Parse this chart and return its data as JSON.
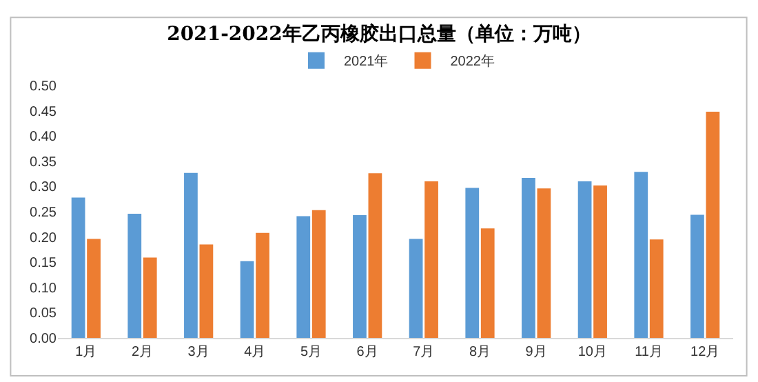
{
  "chart_data": {
    "type": "bar",
    "title": "2021-2022年乙丙橡胶出口总量（单位：万吨）",
    "categories": [
      "1月",
      "2月",
      "3月",
      "4月",
      "5月",
      "6月",
      "7月",
      "8月",
      "9月",
      "10月",
      "11月",
      "12月"
    ],
    "series": [
      {
        "name": "2021年",
        "color": "#5b9bd5",
        "values": [
          0.278,
          0.246,
          0.327,
          0.152,
          0.241,
          0.243,
          0.196,
          0.297,
          0.317,
          0.31,
          0.329,
          0.244
        ]
      },
      {
        "name": "2022年",
        "color": "#ed7d31",
        "values": [
          0.196,
          0.159,
          0.185,
          0.208,
          0.253,
          0.326,
          0.31,
          0.217,
          0.296,
          0.302,
          0.195,
          0.448
        ]
      }
    ],
    "ylim": [
      0,
      0.5
    ],
    "yticks": [
      {
        "value": 0,
        "label": "0.00"
      },
      {
        "value": 0.05,
        "label": "0.05"
      },
      {
        "value": 0.1,
        "label": "0.10"
      },
      {
        "value": 0.15,
        "label": "0.15"
      },
      {
        "value": 0.2,
        "label": "0.20"
      },
      {
        "value": 0.25,
        "label": "0.25"
      },
      {
        "value": 0.3,
        "label": "0.30"
      },
      {
        "value": 0.35,
        "label": "0.35"
      },
      {
        "value": 0.4,
        "label": "0.40"
      },
      {
        "value": 0.45,
        "label": "0.45"
      },
      {
        "value": 0.5,
        "label": "0.50"
      }
    ],
    "grid": false,
    "legend": "top"
  }
}
